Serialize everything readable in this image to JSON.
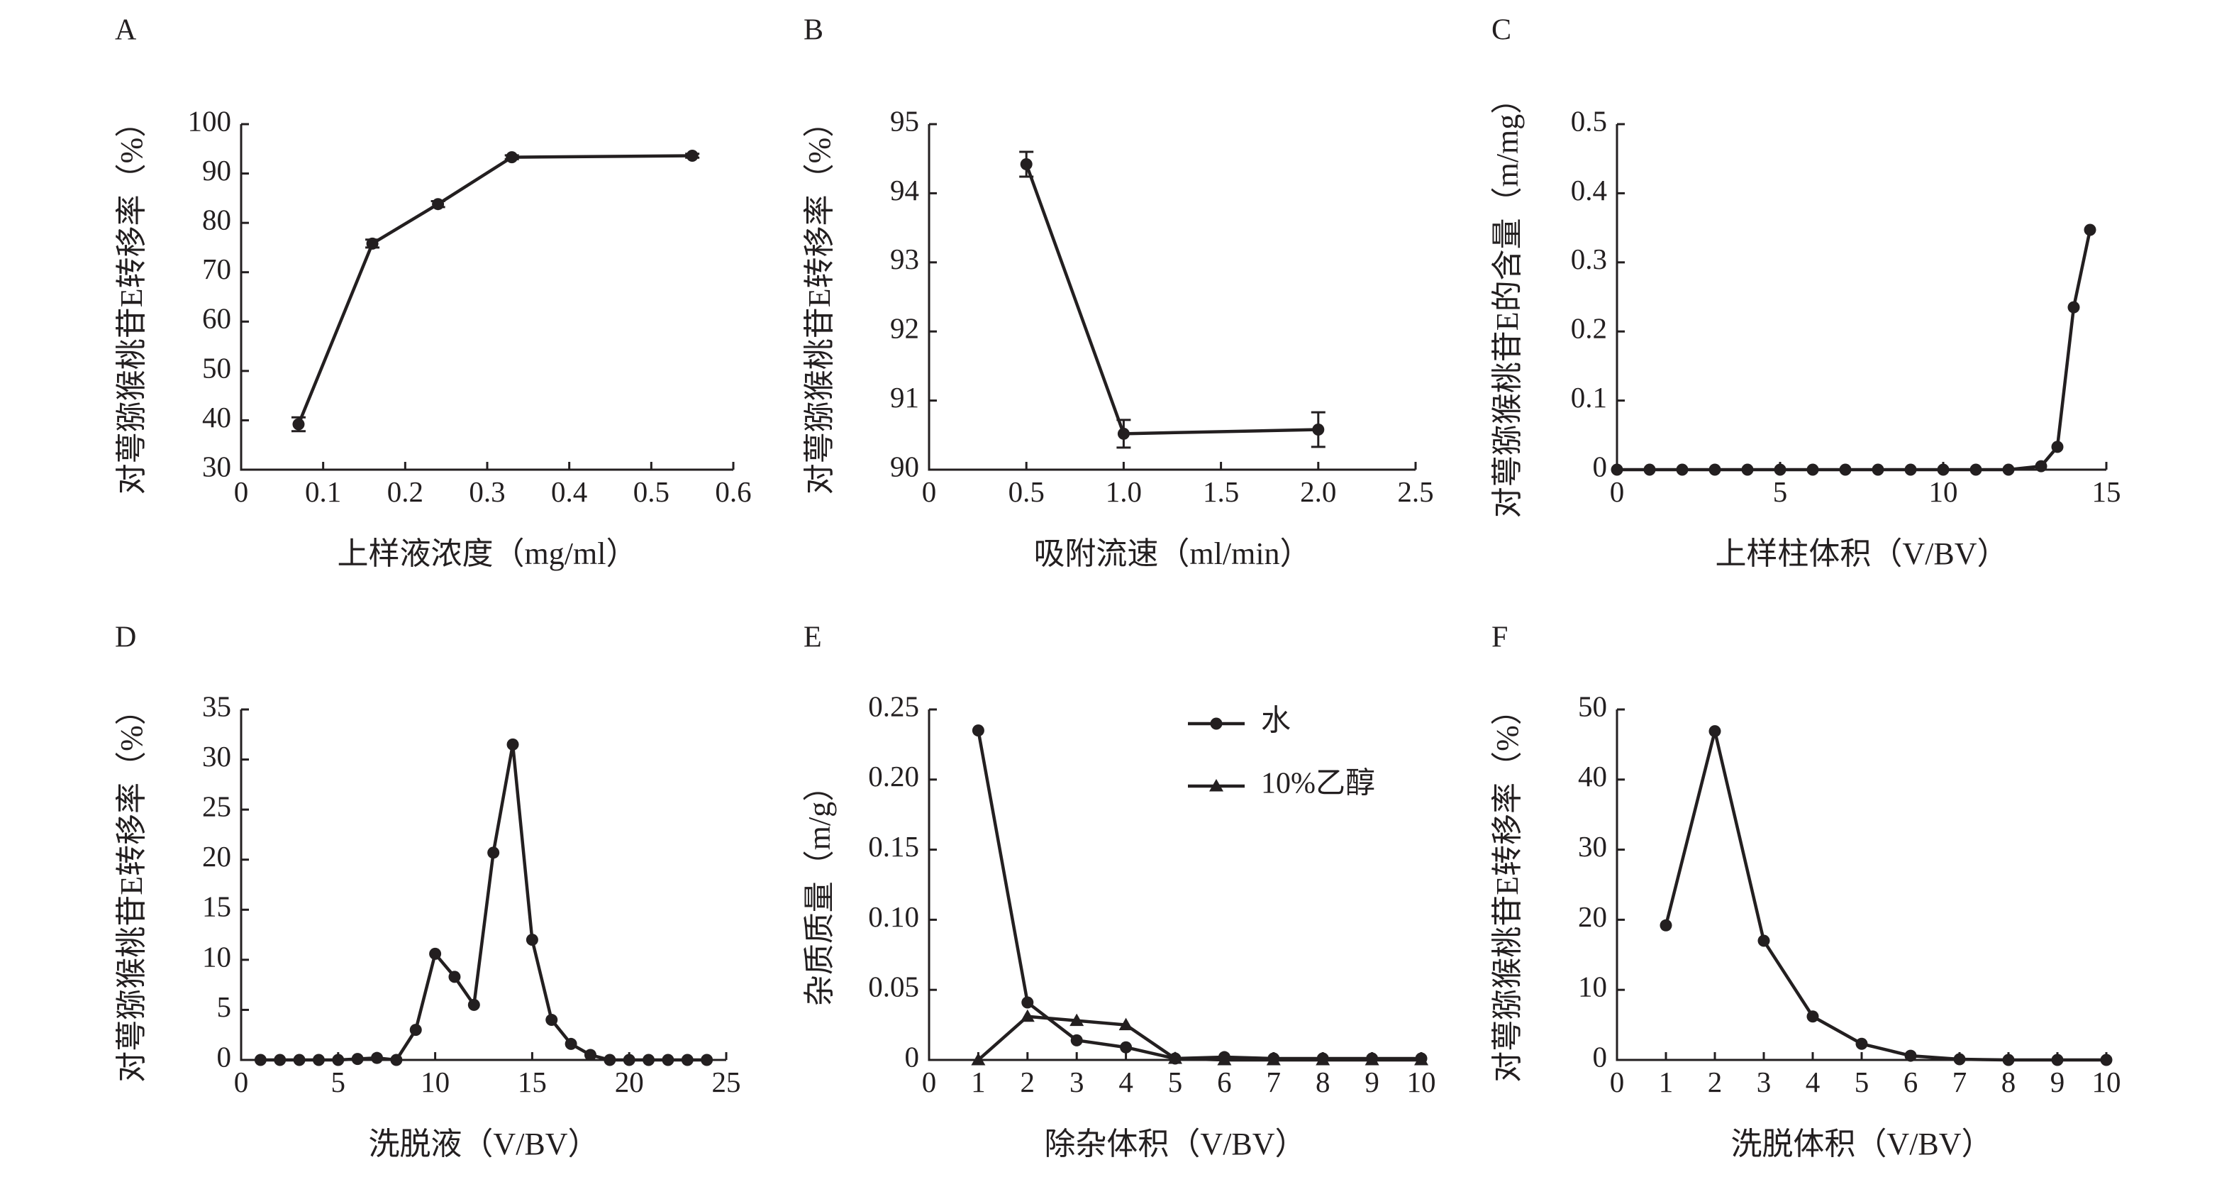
{
  "chart_data": [
    {
      "panel": "A",
      "type": "line",
      "xlabel": "上样液浓度（mg/ml）",
      "ylabel": "对萼猕猴桃苷E转移率（%）",
      "xlim": [
        0,
        0.6
      ],
      "ylim": [
        30,
        100
      ],
      "xticks": [
        0,
        0.1,
        0.2,
        0.3,
        0.4,
        0.5,
        0.6
      ],
      "xtick_labels": [
        "0",
        "0.1",
        "0.2",
        "0.3",
        "0.4",
        "0.5",
        "0.6"
      ],
      "yticks": [
        30,
        40,
        50,
        60,
        70,
        80,
        90,
        100
      ],
      "ytick_labels": [
        "30",
        "40",
        "50",
        "60",
        "70",
        "80",
        "90",
        "100"
      ],
      "series": [
        {
          "name": "",
          "marker": "circle",
          "x": [
            0.07,
            0.16,
            0.24,
            0.33,
            0.55
          ],
          "y": [
            39.2,
            75.8,
            83.8,
            93.3,
            93.6
          ],
          "err": [
            1.4,
            0.8,
            0.6,
            0.4,
            0.4
          ]
        }
      ]
    },
    {
      "panel": "B",
      "type": "line",
      "xlabel": "吸附流速（ml/min）",
      "ylabel": "对萼猕猴桃苷E转移率（%）",
      "xlim": [
        0,
        2.5
      ],
      "ylim": [
        90,
        95
      ],
      "xticks": [
        0,
        0.5,
        1.0,
        1.5,
        2.0,
        2.5
      ],
      "xtick_labels": [
        "0",
        "0.5",
        "1.0",
        "1.5",
        "2.0",
        "2.5"
      ],
      "yticks": [
        90,
        91,
        92,
        93,
        94,
        95
      ],
      "ytick_labels": [
        "90",
        "91",
        "92",
        "93",
        "94",
        "95"
      ],
      "series": [
        {
          "name": "",
          "marker": "circle",
          "x": [
            0.5,
            1.0,
            2.0
          ],
          "y": [
            94.42,
            90.52,
            90.58
          ],
          "err": [
            0.18,
            0.2,
            0.25
          ]
        }
      ]
    },
    {
      "panel": "C",
      "type": "line",
      "xlabel": "上样柱体积（V/BV）",
      "ylabel": "对萼猕猴桃苷E的含量（m/mg）",
      "xlim": [
        0,
        15
      ],
      "ylim": [
        0,
        0.5
      ],
      "xticks": [
        0,
        5,
        10,
        15
      ],
      "xtick_labels": [
        "0",
        "5",
        "10",
        "15"
      ],
      "yticks": [
        0,
        0.1,
        0.2,
        0.3,
        0.4,
        0.5
      ],
      "ytick_labels": [
        "0",
        "0.1",
        "0.2",
        "0.3",
        "0.4",
        "0.5"
      ],
      "series": [
        {
          "name": "",
          "marker": "circle",
          "x": [
            0,
            1,
            2,
            3,
            4,
            5,
            6,
            7,
            8,
            9,
            10,
            11,
            12,
            13,
            13.5,
            14,
            14.5
          ],
          "y": [
            0,
            0,
            0,
            0,
            0,
            0,
            0,
            0,
            0,
            0,
            0,
            0,
            0,
            0.005,
            0.033,
            0.235,
            0.347
          ]
        }
      ]
    },
    {
      "panel": "D",
      "type": "line",
      "xlabel": "洗脱液（V/BV）",
      "ylabel": "对萼猕猴桃苷E转移率（%）",
      "xlim": [
        0,
        25
      ],
      "ylim": [
        0,
        35
      ],
      "xticks": [
        0,
        5,
        10,
        15,
        20,
        25
      ],
      "xtick_labels": [
        "0",
        "5",
        "10",
        "15",
        "20",
        "25"
      ],
      "yticks": [
        0,
        5,
        10,
        15,
        20,
        25,
        30,
        35
      ],
      "ytick_labels": [
        "0",
        "5",
        "10",
        "15",
        "20",
        "25",
        "30",
        "35"
      ],
      "series": [
        {
          "name": "",
          "marker": "circle",
          "x": [
            1,
            2,
            3,
            4,
            5,
            6,
            7,
            8,
            9,
            10,
            11,
            12,
            13,
            14,
            15,
            16,
            17,
            18,
            19,
            20,
            21,
            22,
            23,
            24
          ],
          "y": [
            0,
            0,
            0,
            0,
            0,
            0.1,
            0.2,
            0,
            3,
            10.6,
            8.3,
            5.5,
            20.7,
            31.5,
            12,
            4,
            1.6,
            0.5,
            0,
            0,
            0,
            0,
            0,
            0
          ]
        }
      ]
    },
    {
      "panel": "E",
      "type": "line",
      "xlabel": "除杂体积（V/BV）",
      "ylabel": "杂质质量（m/g）",
      "xlim": [
        0,
        10
      ],
      "ylim": [
        0,
        0.25
      ],
      "xticks": [
        0,
        1,
        2,
        3,
        4,
        5,
        6,
        7,
        8,
        9,
        10
      ],
      "xtick_labels": [
        "0",
        "1",
        "2",
        "3",
        "4",
        "5",
        "6",
        "7",
        "8",
        "9",
        "10"
      ],
      "yticks": [
        0,
        0.05,
        0.1,
        0.15,
        0.2,
        0.25
      ],
      "ytick_labels": [
        "0",
        "0.05",
        "0.10",
        "0.15",
        "0.20",
        "0.25"
      ],
      "legend": "top-right",
      "series": [
        {
          "name": "水",
          "marker": "circle",
          "x": [
            1,
            2,
            3,
            4,
            5,
            6,
            7,
            8,
            9,
            10
          ],
          "y": [
            0.235,
            0.041,
            0.014,
            0.009,
            0.001,
            0.002,
            0.001,
            0.001,
            0.001,
            0.001
          ]
        },
        {
          "name": "10%乙醇",
          "marker": "triangle",
          "x": [
            1,
            2,
            3,
            4,
            5,
            6,
            7,
            8,
            9,
            10
          ],
          "y": [
            0,
            0.031,
            0.028,
            0.025,
            0.001,
            0,
            0,
            0,
            0,
            0
          ]
        }
      ]
    },
    {
      "panel": "F",
      "type": "line",
      "xlabel": "洗脱体积（V/BV）",
      "ylabel": "对萼猕猴桃苷E转移率（%）",
      "xlim": [
        0,
        10
      ],
      "ylim": [
        0,
        50
      ],
      "xticks": [
        0,
        1,
        2,
        3,
        4,
        5,
        6,
        7,
        8,
        9,
        10
      ],
      "xtick_labels": [
        "0",
        "1",
        "2",
        "3",
        "4",
        "5",
        "6",
        "7",
        "8",
        "9",
        "10"
      ],
      "yticks": [
        0,
        10,
        20,
        30,
        40,
        50
      ],
      "ytick_labels": [
        "0",
        "10",
        "20",
        "30",
        "40",
        "50"
      ],
      "series": [
        {
          "name": "",
          "marker": "circle",
          "x": [
            1,
            2,
            3,
            4,
            5,
            6,
            7,
            8,
            9,
            10
          ],
          "y": [
            19.2,
            46.9,
            17,
            6.2,
            2.3,
            0.6,
            0.1,
            0,
            0,
            0
          ]
        }
      ]
    }
  ]
}
